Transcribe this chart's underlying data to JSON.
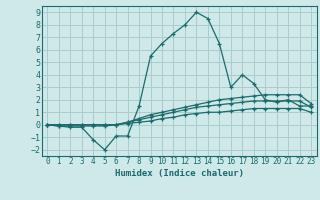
{
  "xlabel": "Humidex (Indice chaleur)",
  "background_color": "#cfe8e8",
  "grid_color": "#aacccc",
  "line_color": "#1a6b6b",
  "xlim": [
    -0.5,
    23.5
  ],
  "ylim": [
    -2.5,
    9.5
  ],
  "xticks": [
    0,
    1,
    2,
    3,
    4,
    5,
    6,
    7,
    8,
    9,
    10,
    11,
    12,
    13,
    14,
    15,
    16,
    17,
    18,
    19,
    20,
    21,
    22,
    23
  ],
  "yticks": [
    -2,
    -1,
    0,
    1,
    2,
    3,
    4,
    5,
    6,
    7,
    8,
    9
  ],
  "series": [
    [
      0.0,
      -0.1,
      -0.2,
      -0.2,
      -1.2,
      -2.0,
      -0.9,
      -0.9,
      1.5,
      5.5,
      6.5,
      7.3,
      8.0,
      9.0,
      8.5,
      6.5,
      3.0,
      4.0,
      3.3,
      2.0,
      1.8,
      2.0,
      1.5,
      1.5
    ],
    [
      0.0,
      -0.1,
      -0.1,
      -0.1,
      -0.1,
      -0.1,
      0.0,
      0.2,
      0.5,
      0.8,
      1.0,
      1.2,
      1.4,
      1.6,
      1.8,
      2.0,
      2.1,
      2.2,
      2.3,
      2.4,
      2.4,
      2.4,
      2.4,
      1.7
    ],
    [
      0.0,
      0.0,
      0.0,
      0.0,
      0.0,
      0.0,
      0.0,
      0.2,
      0.4,
      0.6,
      0.8,
      1.0,
      1.2,
      1.4,
      1.5,
      1.6,
      1.7,
      1.8,
      1.9,
      1.9,
      1.9,
      1.9,
      1.9,
      1.4
    ],
    [
      0.0,
      0.0,
      0.0,
      0.0,
      0.0,
      0.0,
      0.0,
      0.1,
      0.2,
      0.3,
      0.5,
      0.6,
      0.8,
      0.9,
      1.0,
      1.0,
      1.1,
      1.2,
      1.3,
      1.3,
      1.3,
      1.3,
      1.3,
      1.0
    ]
  ]
}
